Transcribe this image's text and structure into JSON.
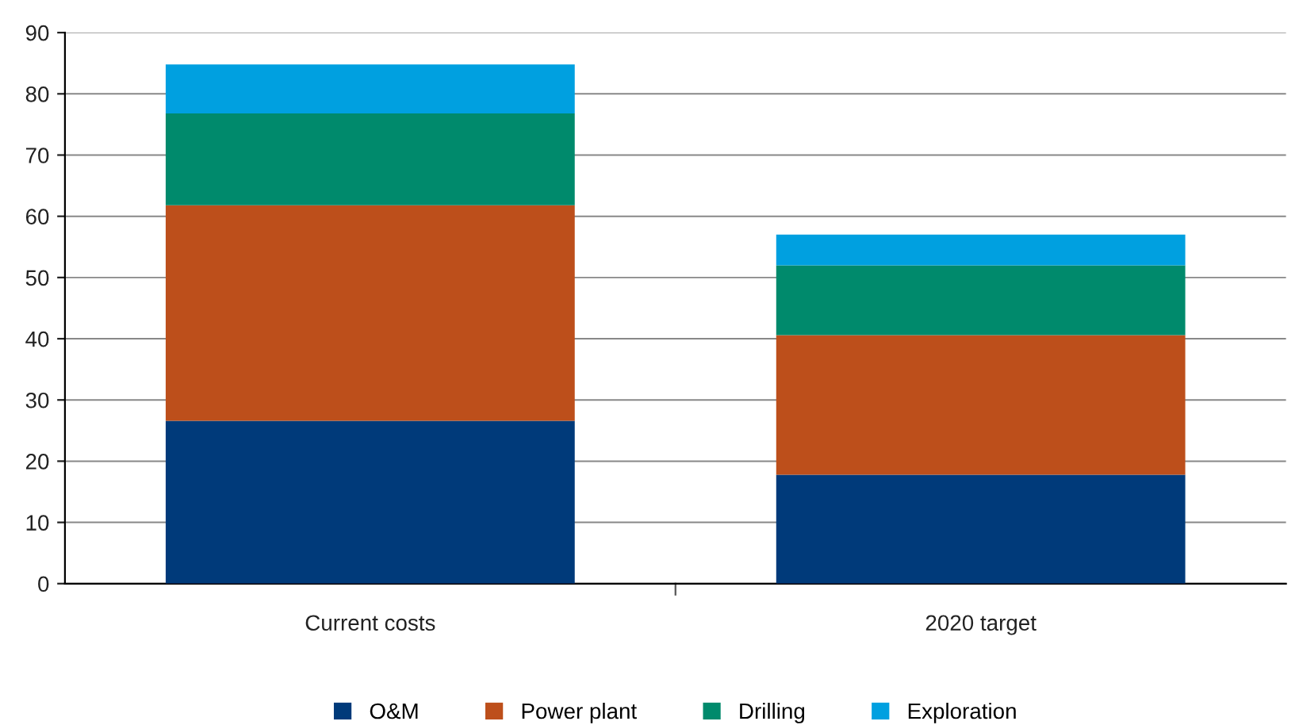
{
  "chart_data": {
    "type": "bar",
    "stacked": true,
    "categories": [
      "Current costs",
      "2020 target"
    ],
    "series": [
      {
        "name": "O&M",
        "color": "#003a7a",
        "values": [
          26.6,
          17.8
        ]
      },
      {
        "name": "Power plant",
        "color": "#bd4f1b",
        "values": [
          35.2,
          22.8
        ]
      },
      {
        "name": "Drilling",
        "color": "#008a6c",
        "values": [
          15,
          11.4
        ]
      },
      {
        "name": "Exploration",
        "color": "#00a0e0",
        "values": [
          8,
          5
        ]
      }
    ],
    "ylim": [
      0,
      90
    ],
    "yticks": [
      0,
      10,
      20,
      30,
      40,
      50,
      60,
      70,
      80,
      90
    ],
    "grid": "y",
    "legend": "bottom"
  }
}
